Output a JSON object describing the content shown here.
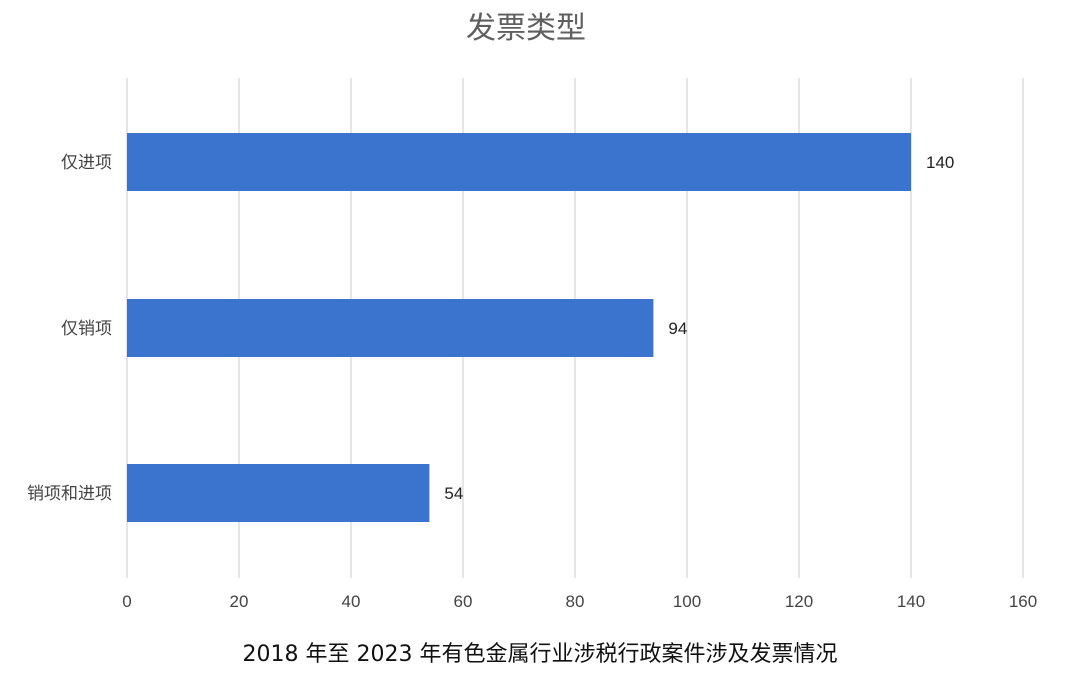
{
  "chart_data": {
    "type": "bar",
    "orientation": "horizontal",
    "title": "发票类型",
    "categories": [
      "仅进项",
      "仅销项",
      "销项和进项"
    ],
    "values": [
      140,
      94,
      54
    ],
    "xlim": [
      0,
      160
    ],
    "xticks": [
      0,
      20,
      40,
      60,
      80,
      100,
      120,
      140,
      160
    ],
    "grid": true,
    "legend": "none",
    "bar_color": "#3a74cf",
    "grid_color": "#d4d4d4"
  },
  "caption": "2018 年至 2023 年有色金属行业涉税行政案件涉及发票情况"
}
